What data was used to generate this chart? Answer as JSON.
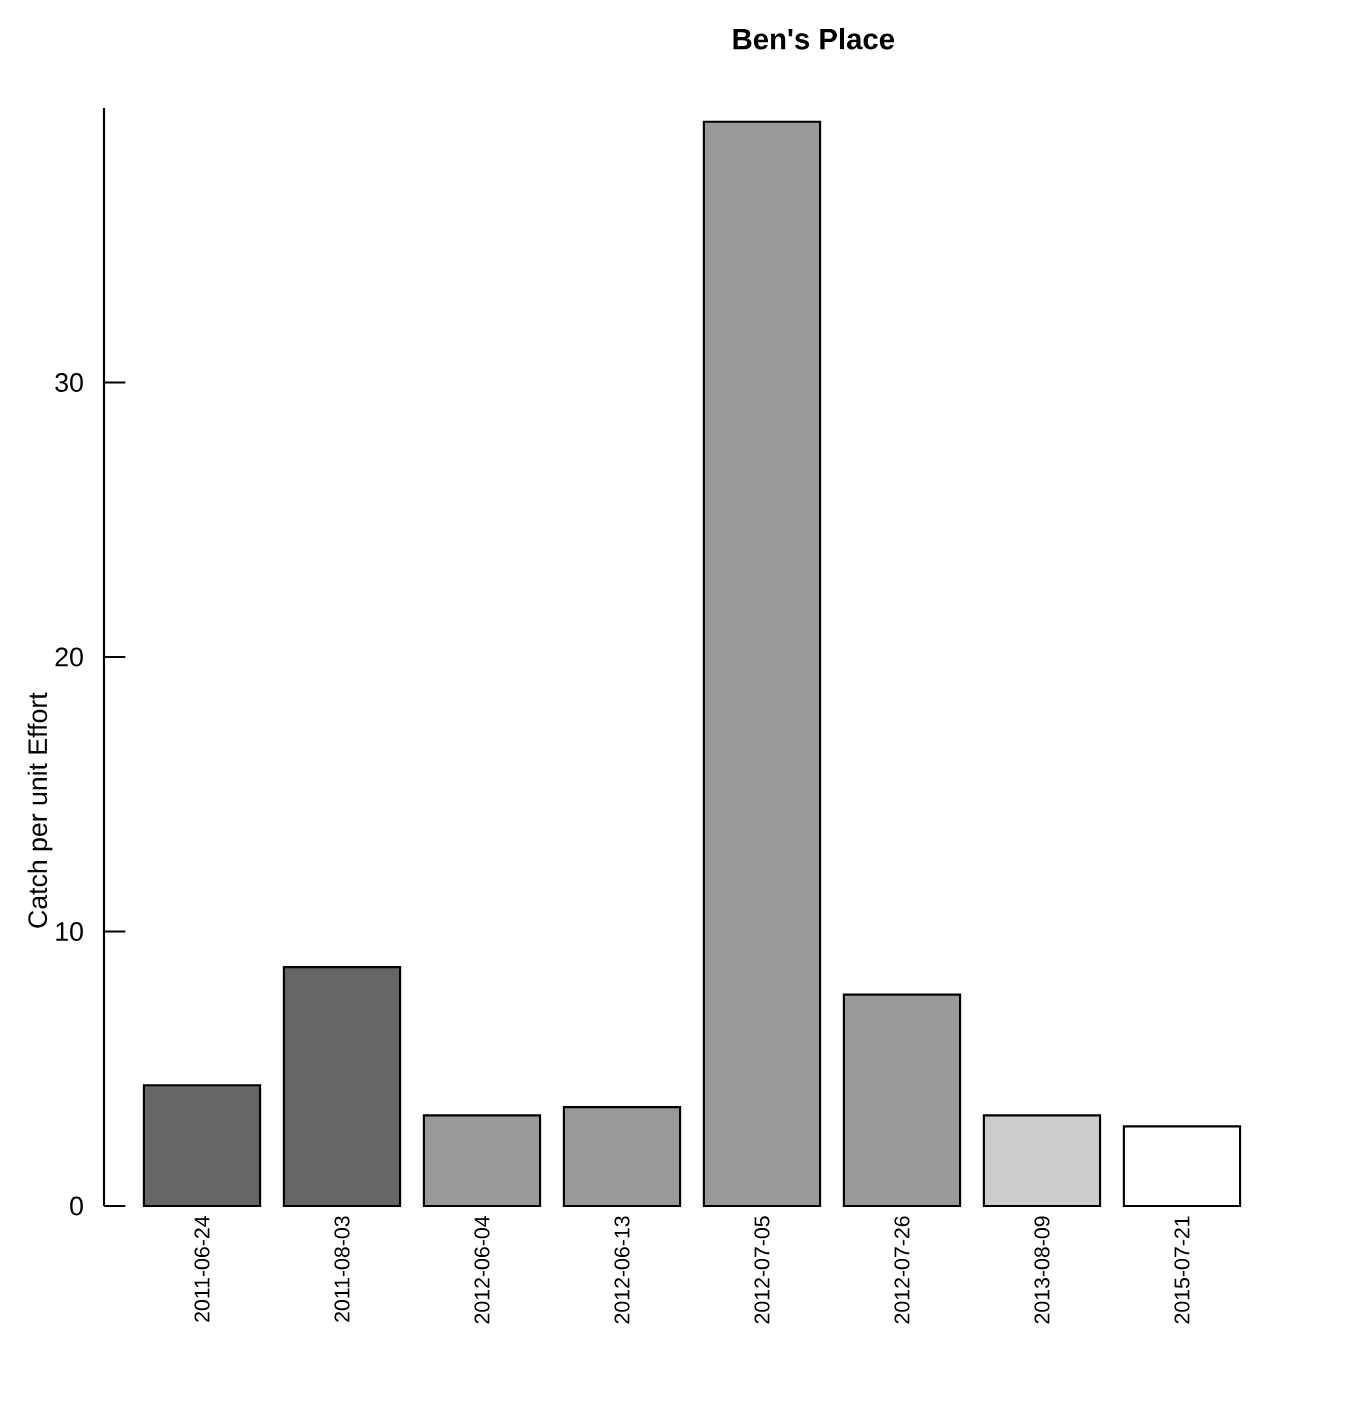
{
  "chart_data": {
    "type": "bar",
    "title": "Ben's Place",
    "ylabel": "Catch per unit Effort",
    "categories": [
      "2011-06-24",
      "2011-08-03",
      "2012-06-04",
      "2012-06-13",
      "2012-07-05",
      "2012-07-26",
      "2013-08-09",
      "2015-07-21"
    ],
    "values": [
      4.4,
      8.7,
      3.3,
      3.6,
      39.5,
      7.7,
      3.3,
      2.9
    ],
    "colors": [
      "#666666",
      "#666666",
      "#999999",
      "#999999",
      "#999999",
      "#999999",
      "#cccccc",
      "#ffffff"
    ],
    "ylim": [
      0,
      40
    ],
    "yticks": [
      0,
      10,
      20,
      30
    ],
    "grid": false
  }
}
